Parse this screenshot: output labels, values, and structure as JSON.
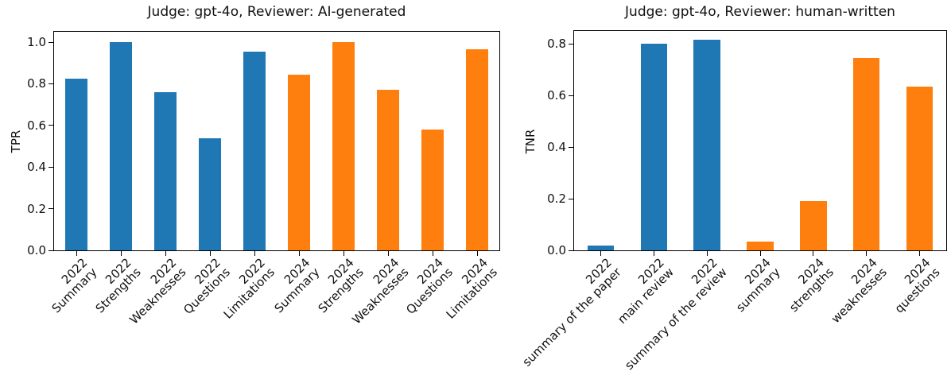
{
  "colors": {
    "bar_blue": "#1f77b4",
    "bar_orange": "#ff7f0e",
    "text": "#111111",
    "spine": "#000000"
  },
  "chart_data": [
    {
      "type": "bar",
      "title": "Judge: gpt-4o, Reviewer: AI-generated",
      "xlabel": "",
      "ylabel": "TPR",
      "ylim": [
        0,
        1.05
      ],
      "grid": false,
      "legend": "none",
      "ytick_labels": [
        "0.0",
        "0.2",
        "0.4",
        "0.6",
        "0.8",
        "1.0"
      ],
      "ytick_values": [
        0.0,
        0.2,
        0.4,
        0.6,
        0.8,
        1.0
      ],
      "categories": [
        "2022\nSummary",
        "2022\nStrengths",
        "2022\nWeaknesses",
        "2022\nQuestions",
        "2022\nLimitations",
        "2024\nSummary",
        "2024\nStrengths",
        "2024\nWeaknesses",
        "2024\nQuestions",
        "2024\nLimitations"
      ],
      "values": [
        0.825,
        1.0,
        0.76,
        0.54,
        0.955,
        0.845,
        1.0,
        0.77,
        0.58,
        0.965
      ],
      "bar_colors": [
        "#1f77b4",
        "#1f77b4",
        "#1f77b4",
        "#1f77b4",
        "#1f77b4",
        "#ff7f0e",
        "#ff7f0e",
        "#ff7f0e",
        "#ff7f0e",
        "#ff7f0e"
      ]
    },
    {
      "type": "bar",
      "title": "Judge: gpt-4o, Reviewer: human-written",
      "xlabel": "",
      "ylabel": "TNR",
      "ylim": [
        0,
        0.85
      ],
      "grid": false,
      "legend": "none",
      "ytick_labels": [
        "0.0",
        "0.2",
        "0.4",
        "0.6",
        "0.8"
      ],
      "ytick_values": [
        0.0,
        0.2,
        0.4,
        0.6,
        0.8
      ],
      "categories": [
        "2022\nsummary of the paper",
        "2022\nmain review",
        "2022\nsummary of the review",
        "2024\nsummary",
        "2024\nstrengths",
        "2024\nweaknesses",
        "2024\nquestions"
      ],
      "values": [
        0.02,
        0.8,
        0.815,
        0.035,
        0.19,
        0.745,
        0.635
      ],
      "bar_colors": [
        "#1f77b4",
        "#1f77b4",
        "#1f77b4",
        "#ff7f0e",
        "#ff7f0e",
        "#ff7f0e",
        "#ff7f0e"
      ]
    }
  ]
}
